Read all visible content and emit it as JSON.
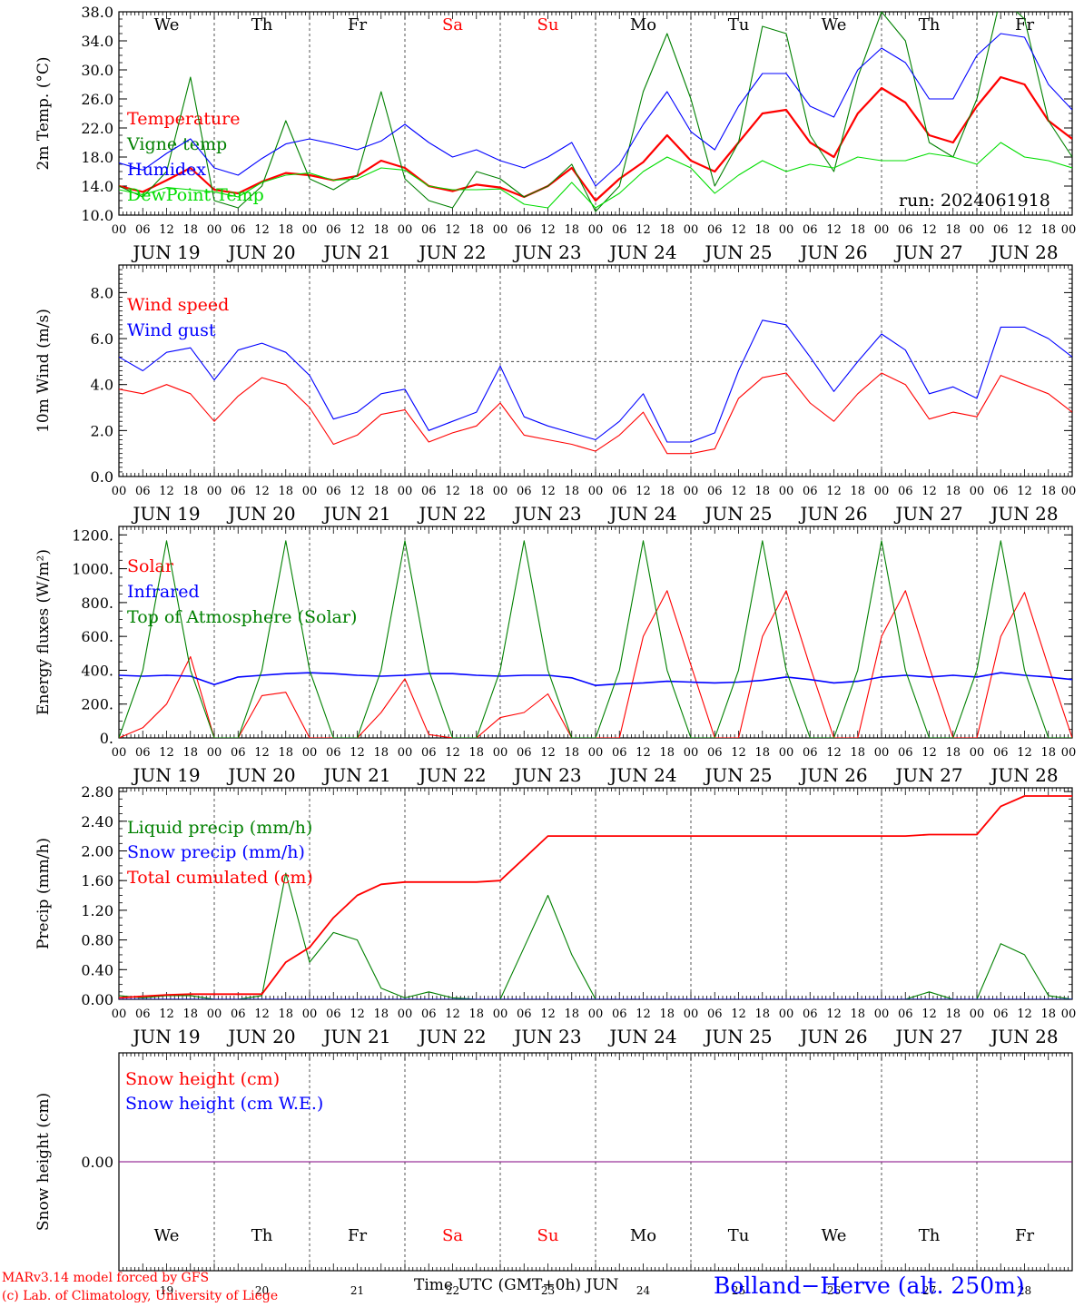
{
  "meteogram": {
    "run_label": "run: 2024061918",
    "station": "Bolland−Herve (alt. 250m)",
    "credit_line1": "MARv3.14 model forced by GFS",
    "credit_line2": "(c) Lab. of Climatology, University of Liege",
    "xaxis_title": "Time UTC (GMT+0h) JUN",
    "hour_ticks": [
      "00",
      "06",
      "12",
      "18"
    ],
    "hour_end": "00",
    "dates": [
      "JUN 19",
      "JUN 20",
      "JUN 21",
      "JUN 22",
      "JUN 23",
      "JUN 24",
      "JUN 25",
      "JUN 26",
      "JUN 27",
      "JUN 28"
    ],
    "day_numbers": [
      "19",
      "20",
      "21",
      "22",
      "23",
      "24",
      "25",
      "26",
      "27",
      "28"
    ],
    "weekdays": [
      "We",
      "Th",
      "Fr",
      "Sa",
      "Su",
      "Mo",
      "Tu",
      "We",
      "Th",
      "Fr"
    ],
    "weekend_days": [
      3,
      4
    ],
    "colors": {
      "red": "#ff0000",
      "green": "#008000",
      "lightgreen": "#00dd00",
      "blue": "#0000ff",
      "purple": "#800080",
      "axis": "#000000",
      "weekend": "#ff0000"
    }
  },
  "chart_data": [
    {
      "type": "line",
      "ylabel": "2m Temp. (°C)",
      "ylim": [
        10,
        38
      ],
      "yticks": [
        "10.0",
        "14.0",
        "18.0",
        "22.0",
        "26.0",
        "30.0",
        "34.0",
        "38.0"
      ],
      "ytick_values": [
        10,
        14,
        18,
        22,
        26,
        30,
        34,
        38
      ],
      "minor_step": 1,
      "x": [
        0,
        6,
        12,
        18,
        24,
        30,
        36,
        42,
        48,
        54,
        60,
        66,
        72,
        78,
        84,
        90,
        96,
        102,
        108,
        114,
        120,
        126,
        132,
        138,
        144,
        150,
        156,
        162,
        168,
        174,
        180,
        186,
        192,
        198,
        204,
        210,
        216,
        222,
        228,
        234,
        240
      ],
      "series": [
        {
          "name": "Temperature",
          "color": "red",
          "width": 2.2,
          "values": [
            14,
            13.2,
            14.8,
            16.5,
            13.5,
            13.0,
            14.6,
            15.8,
            15.5,
            14.8,
            15.4,
            17.5,
            16.5,
            14.0,
            13.3,
            14.2,
            13.8,
            12.5,
            14.0,
            16.5,
            12.0,
            15.0,
            17.3,
            21.0,
            17.5,
            16.0,
            20.0,
            24.0,
            24.5,
            20.0,
            18.0,
            24.0,
            27.5,
            25.5,
            21.0,
            20.0,
            25.0,
            29.0,
            28.0,
            23.0,
            20.5
          ]
        },
        {
          "name": "Vigne temp",
          "color": "green",
          "width": 1.1,
          "values": [
            14,
            12.5,
            16,
            29,
            12,
            11,
            14,
            23,
            15,
            13.5,
            15.5,
            27,
            15,
            12,
            11,
            16,
            15,
            12.5,
            14,
            17,
            10.5,
            14,
            27,
            35,
            26,
            14,
            20,
            36,
            35,
            21,
            16,
            29,
            38,
            34,
            20,
            18,
            26,
            40,
            37,
            23,
            18
          ]
        },
        {
          "name": "Humidex",
          "color": "blue",
          "width": 1.1,
          "values": [
            17.2,
            16.2,
            18.5,
            20.5,
            16.5,
            15.5,
            17.8,
            19.8,
            20.5,
            19.8,
            19.0,
            20.2,
            22.5,
            20.0,
            18.0,
            19.0,
            17.5,
            16.5,
            18.0,
            20.0,
            14.0,
            17.0,
            22.5,
            27.0,
            21.5,
            19.0,
            25.0,
            29.5,
            29.5,
            25.0,
            23.5,
            30.0,
            33.0,
            31.0,
            26.0,
            26.0,
            32.0,
            35.0,
            34.5,
            28.0,
            24.5
          ]
        },
        {
          "name": "DewPoint Temp",
          "color": "lightgreen",
          "width": 1.1,
          "values": [
            13.5,
            12.8,
            13.8,
            13.5,
            13.2,
            12.5,
            14.5,
            15.5,
            15.8,
            14.8,
            15.0,
            16.5,
            16.2,
            14.0,
            13.5,
            13.5,
            13.6,
            11.5,
            11.0,
            14.5,
            11.0,
            13.0,
            16.0,
            18.0,
            16.5,
            13.0,
            15.5,
            17.5,
            16.0,
            17.0,
            16.5,
            18.0,
            17.5,
            17.5,
            18.5,
            18.0,
            17.0,
            20.0,
            18.0,
            17.5,
            16.5
          ]
        }
      ]
    },
    {
      "type": "line",
      "ylabel": "10m Wind (m/s)",
      "ylim": [
        0,
        9.2
      ],
      "yticks": [
        "0.0",
        "2.0",
        "4.0",
        "6.0",
        "8.0"
      ],
      "ytick_values": [
        0,
        2,
        4,
        6,
        8
      ],
      "minor_step": 0.2,
      "reference_line": 5.0,
      "x": [
        0,
        6,
        12,
        18,
        24,
        30,
        36,
        42,
        48,
        54,
        60,
        66,
        72,
        78,
        84,
        90,
        96,
        102,
        108,
        114,
        120,
        126,
        132,
        138,
        144,
        150,
        156,
        162,
        168,
        174,
        180,
        186,
        192,
        198,
        204,
        210,
        216,
        222,
        228,
        234,
        240
      ],
      "series": [
        {
          "name": "Wind speed",
          "color": "red",
          "width": 1.1,
          "values": [
            3.8,
            3.6,
            4.0,
            3.6,
            2.4,
            3.5,
            4.3,
            4.0,
            3.0,
            1.4,
            1.8,
            2.7,
            2.9,
            1.5,
            1.9,
            2.2,
            3.2,
            1.8,
            1.6,
            1.4,
            1.1,
            1.8,
            2.8,
            1.0,
            1.0,
            1.2,
            3.4,
            4.3,
            4.5,
            3.2,
            2.4,
            3.6,
            4.5,
            4.0,
            2.5,
            2.8,
            2.6,
            4.4,
            4.0,
            3.6,
            2.8
          ]
        },
        {
          "name": "Wind gust",
          "color": "blue",
          "width": 1.1,
          "values": [
            5.2,
            4.6,
            5.4,
            5.6,
            4.2,
            5.5,
            5.8,
            5.4,
            4.4,
            2.5,
            2.8,
            3.6,
            3.8,
            2.0,
            2.4,
            2.8,
            4.8,
            2.6,
            2.2,
            1.9,
            1.6,
            2.4,
            3.6,
            1.5,
            1.5,
            1.9,
            4.6,
            6.8,
            6.6,
            5.2,
            3.7,
            5.0,
            6.2,
            5.5,
            3.6,
            3.9,
            3.4,
            6.5,
            6.5,
            6.0,
            5.2
          ]
        }
      ]
    },
    {
      "type": "line",
      "ylabel": "Energy fluxes (W/m²)",
      "ylim": [
        0,
        1250
      ],
      "yticks": [
        "0.",
        "200.",
        "400.",
        "600.",
        "800.",
        "1000.",
        "1200."
      ],
      "ytick_values": [
        0,
        200,
        400,
        600,
        800,
        1000,
        1200
      ],
      "minor_step": 50,
      "x": [
        0,
        6,
        12,
        18,
        24,
        30,
        36,
        42,
        48,
        54,
        60,
        66,
        72,
        78,
        84,
        90,
        96,
        102,
        108,
        114,
        120,
        126,
        132,
        138,
        144,
        150,
        156,
        162,
        168,
        174,
        180,
        186,
        192,
        198,
        204,
        210,
        216,
        222,
        228,
        234,
        240
      ],
      "series": [
        {
          "name": "Solar",
          "color": "red",
          "width": 1.1,
          "values": [
            0,
            60,
            200,
            480,
            0,
            0,
            250,
            270,
            0,
            0,
            0,
            150,
            350,
            20,
            0,
            0,
            120,
            150,
            260,
            0,
            0,
            0,
            600,
            870,
            430,
            0,
            0,
            600,
            870,
            420,
            0,
            0,
            600,
            870,
            420,
            0,
            0,
            600,
            860,
            420,
            0
          ]
        },
        {
          "name": "Infrared",
          "color": "blue",
          "width": 1.6,
          "values": [
            370,
            365,
            370,
            365,
            315,
            360,
            370,
            380,
            385,
            380,
            370,
            365,
            370,
            380,
            380,
            370,
            365,
            370,
            370,
            355,
            310,
            320,
            325,
            335,
            330,
            325,
            330,
            340,
            360,
            345,
            325,
            335,
            360,
            370,
            360,
            370,
            360,
            385,
            370,
            360,
            345
          ]
        },
        {
          "name": "Top of Atmosphere (Solar)",
          "color": "green",
          "width": 1.1,
          "values": [
            0,
            400,
            1165,
            400,
            0,
            0,
            400,
            1165,
            400,
            0,
            0,
            400,
            1165,
            400,
            0,
            0,
            400,
            1165,
            400,
            0,
            0,
            400,
            1165,
            400,
            0,
            0,
            400,
            1165,
            400,
            0,
            0,
            400,
            1165,
            400,
            0,
            0,
            400,
            1165,
            400,
            0,
            0
          ]
        }
      ]
    },
    {
      "type": "line",
      "ylabel": "Precip (mm/h)",
      "ylim": [
        0,
        2.85
      ],
      "yticks": [
        "0.00",
        "0.40",
        "0.80",
        "1.20",
        "1.60",
        "2.00",
        "2.40",
        "2.80"
      ],
      "ytick_values": [
        0,
        0.4,
        0.8,
        1.2,
        1.6,
        2.0,
        2.4,
        2.8
      ],
      "minor_step": 0.1,
      "x": [
        0,
        6,
        12,
        18,
        24,
        30,
        36,
        42,
        48,
        54,
        60,
        66,
        72,
        78,
        84,
        90,
        96,
        102,
        108,
        114,
        120,
        126,
        132,
        138,
        144,
        150,
        156,
        162,
        168,
        174,
        180,
        186,
        192,
        198,
        204,
        210,
        216,
        222,
        228,
        234,
        240
      ],
      "series": [
        {
          "name": "Liquid precip (mm/h)",
          "color": "green",
          "width": 1.1,
          "values": [
            0.05,
            0.02,
            0.05,
            0.05,
            0,
            0,
            0.05,
            1.7,
            0.5,
            0.9,
            0.8,
            0.15,
            0.02,
            0.1,
            0.02,
            0,
            0,
            0.7,
            1.4,
            0.6,
            0,
            0,
            0,
            0,
            0,
            0,
            0,
            0,
            0,
            0,
            0,
            0,
            0,
            0,
            0.1,
            0,
            0,
            0.75,
            0.6,
            0.05,
            0
          ]
        },
        {
          "name": "Snow precip (mm/h)",
          "color": "blue",
          "width": 1.1,
          "values": [
            0,
            0,
            0,
            0,
            0,
            0,
            0,
            0,
            0,
            0,
            0,
            0,
            0,
            0,
            0,
            0,
            0,
            0,
            0,
            0,
            0,
            0,
            0,
            0,
            0,
            0,
            0,
            0,
            0,
            0,
            0,
            0,
            0,
            0,
            0,
            0,
            0,
            0,
            0,
            0,
            0
          ]
        },
        {
          "name": "Total cumulated (cm)",
          "color": "red",
          "width": 1.8,
          "values": [
            0.02,
            0.04,
            0.06,
            0.07,
            0.07,
            0.07,
            0.07,
            0.5,
            0.7,
            1.1,
            1.4,
            1.55,
            1.58,
            1.58,
            1.58,
            1.58,
            1.6,
            1.9,
            2.2,
            2.2,
            2.2,
            2.2,
            2.2,
            2.2,
            2.2,
            2.2,
            2.2,
            2.2,
            2.2,
            2.2,
            2.2,
            2.2,
            2.2,
            2.2,
            2.22,
            2.22,
            2.22,
            2.6,
            2.74,
            2.74,
            2.74
          ]
        }
      ]
    },
    {
      "type": "line",
      "ylabel": "Snow height (cm)",
      "ylim": [
        -1,
        1
      ],
      "yticks": [
        "0.00"
      ],
      "ytick_values": [
        0
      ],
      "minor_step": 0,
      "x": [
        0,
        240
      ],
      "series": [
        {
          "name": "Snow height (cm)",
          "color": "red",
          "width": 1.1,
          "values": [
            0,
            0
          ]
        },
        {
          "name": "Snow height (cm W.E.)",
          "color": "blue",
          "width": 1.1,
          "values": [
            0,
            0
          ]
        }
      ],
      "overlap_color": "purple"
    }
  ]
}
